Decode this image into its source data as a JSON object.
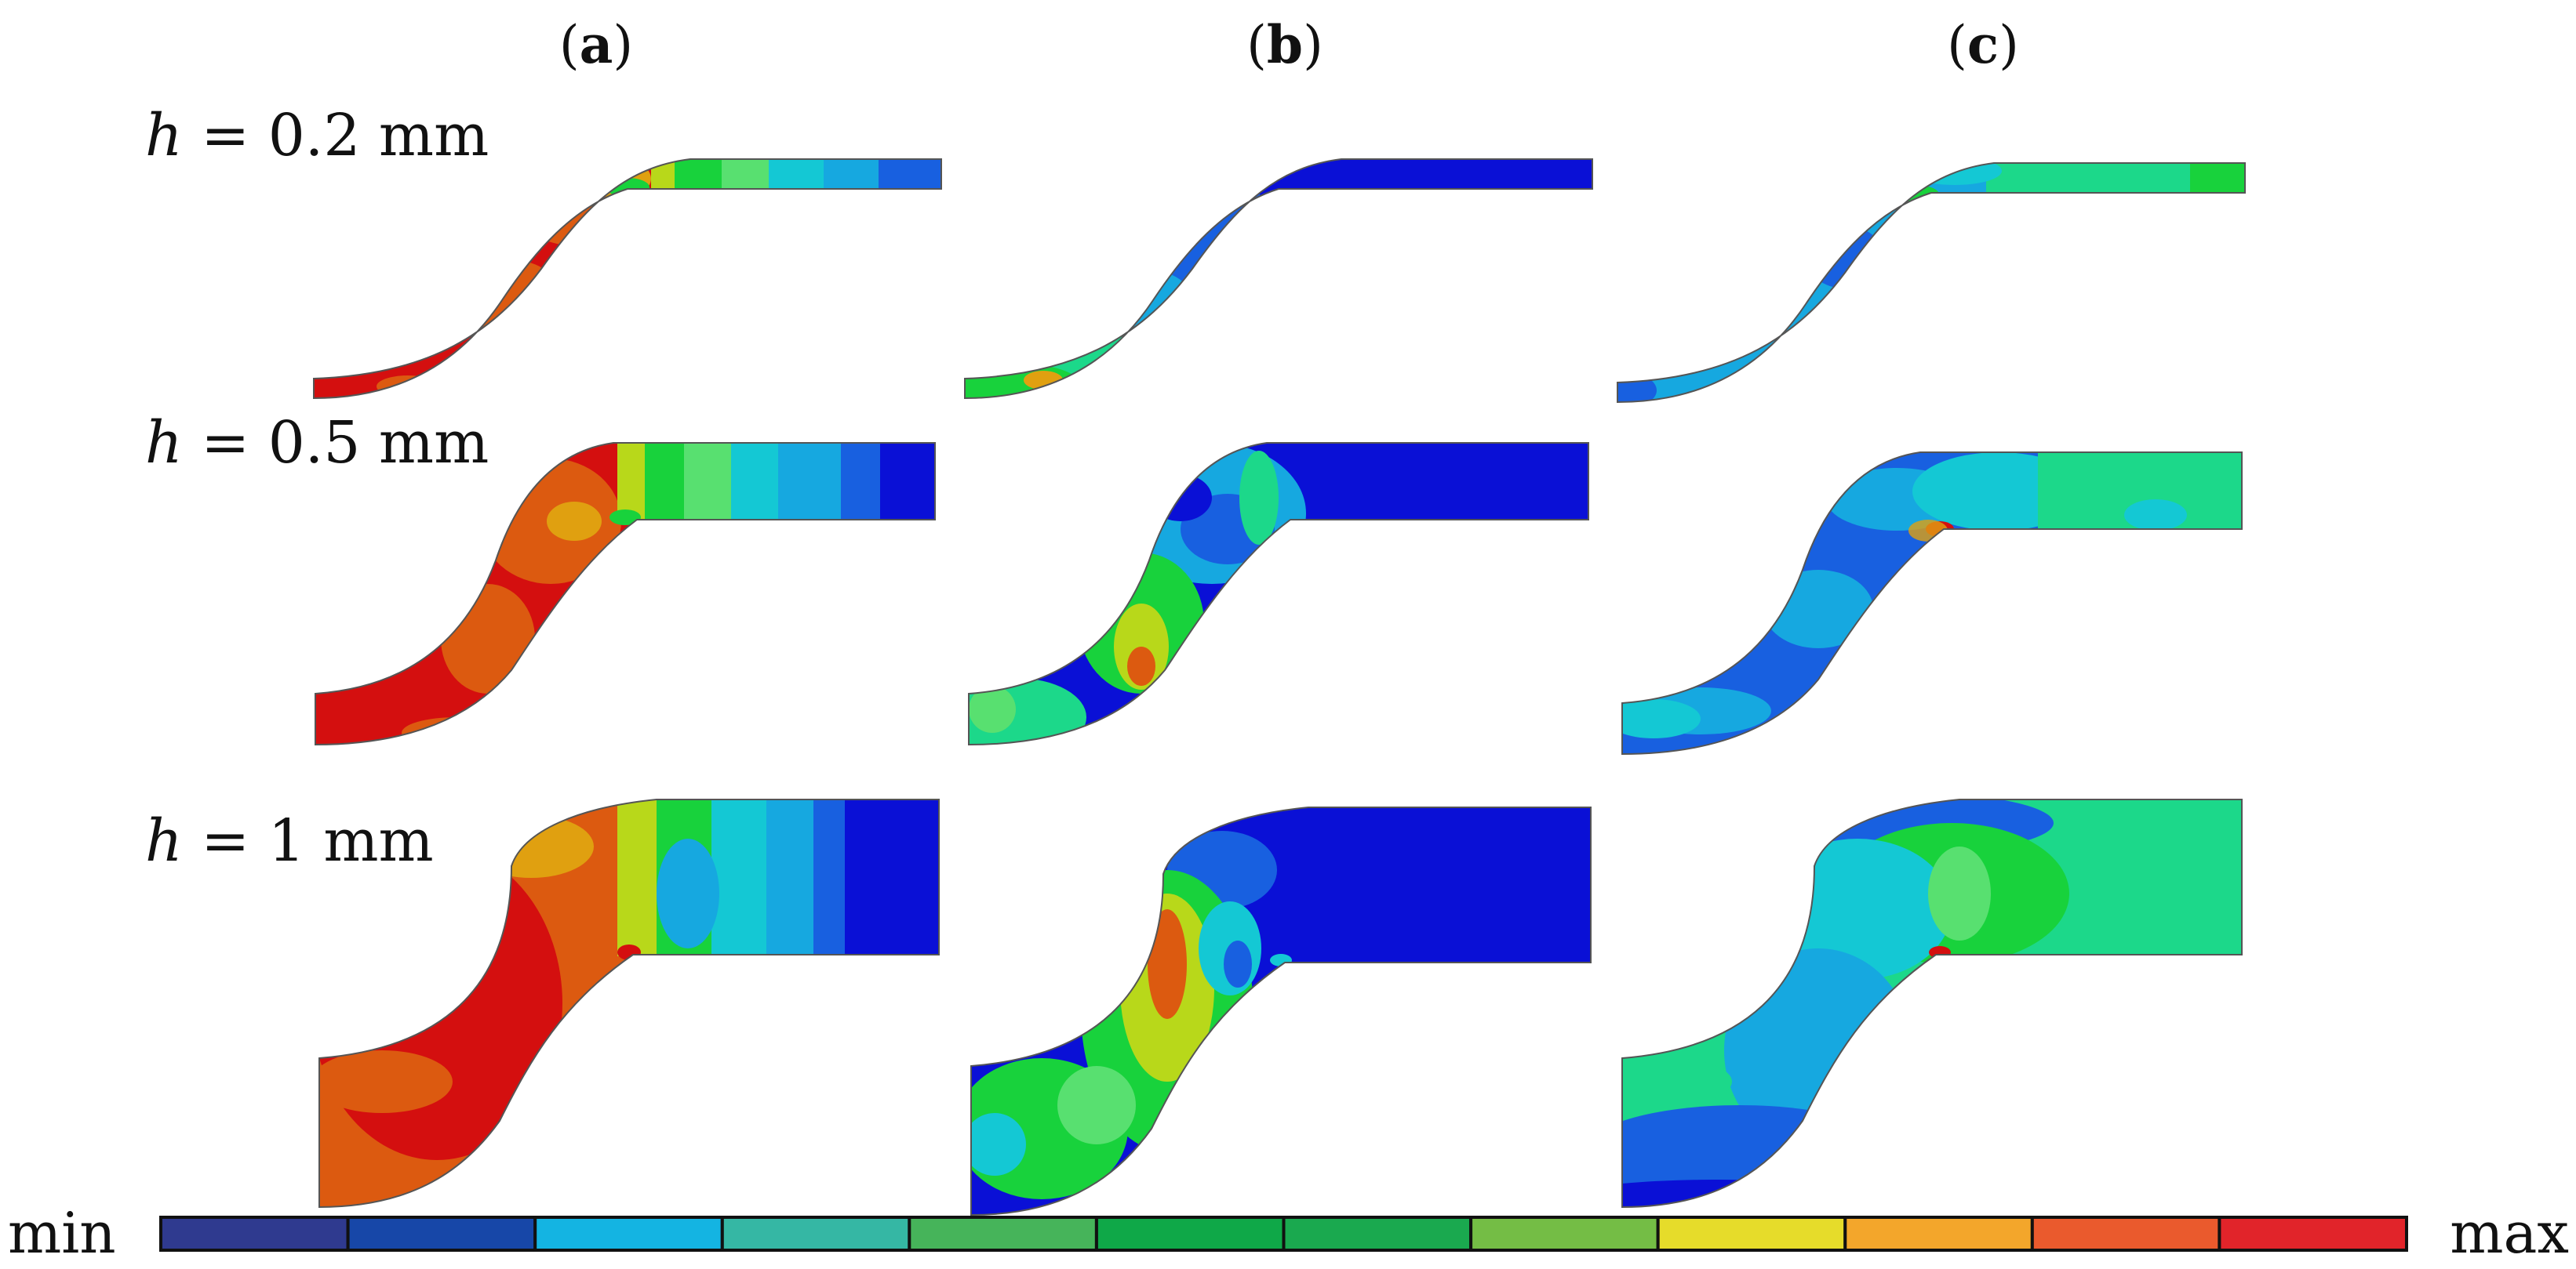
{
  "panels": [
    {
      "id": "a",
      "label_open": "(",
      "label_letter": "a",
      "label_close": ")"
    },
    {
      "id": "b",
      "label_open": "(",
      "label_letter": "b",
      "label_close": ")"
    },
    {
      "id": "c",
      "label_open": "(",
      "label_letter": "c",
      "label_close": ")"
    }
  ],
  "rows": [
    {
      "var": "h",
      "eq": " = 0.2 mm"
    },
    {
      "var": "h",
      "eq": " = 0.5 mm"
    },
    {
      "var": "h",
      "eq": " = 1 mm"
    }
  ],
  "legend": {
    "min_label": "min",
    "max_label": "max",
    "colors": [
      "#2f3a8f",
      "#1747a8",
      "#14b4e2",
      "#35b7a4",
      "#46b45a",
      "#0fa848",
      "#1aa94f",
      "#74bd45",
      "#e6dc2a",
      "#f3a62b",
      "#ea5a2d",
      "#e1242a"
    ]
  },
  "palette": {
    "red": "#d40f0f",
    "orange": "#dc5a10",
    "yellow_orange": "#e0a010",
    "yellow_green": "#b8d81a",
    "green": "#18d23c",
    "light_green": "#58e070",
    "mint": "#1cd88a",
    "cyan": "#14c8d4",
    "light_blue": "#16a8e0",
    "blue": "#1860e0",
    "dark_blue": "#0a10d6"
  }
}
